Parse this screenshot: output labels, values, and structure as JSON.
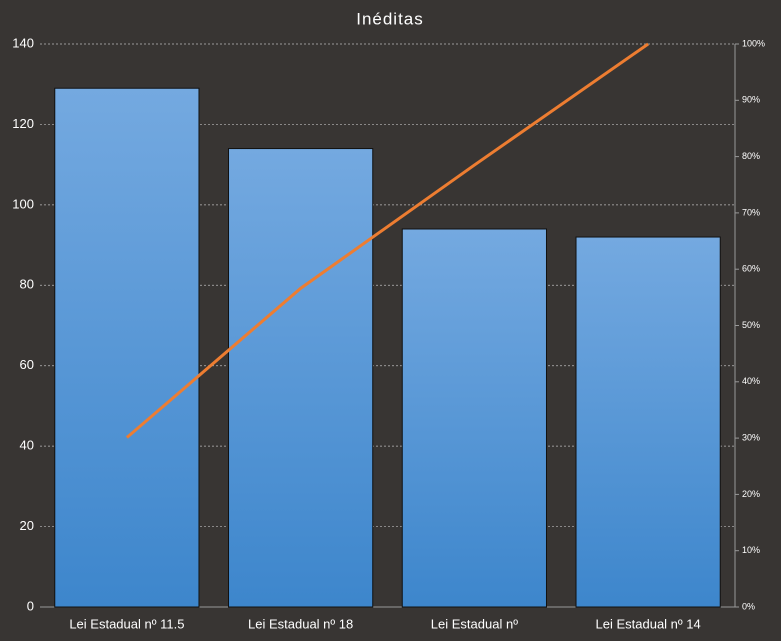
{
  "chart_data": {
    "type": "bar",
    "title": "Inéditas",
    "categories": [
      "Lei Estadual nº 11.5",
      "Lei Estadual nº 18",
      "Lei Estadual nº",
      "Lei Estadual nº 14"
    ],
    "series": [
      {
        "type": "bar",
        "color": "#5b9bd5",
        "values": [
          129,
          114,
          94,
          92
        ]
      },
      {
        "type": "line",
        "axis": "y2",
        "color": "#ed7d31",
        "values": [
          30.1,
          56.6,
          78.5,
          100
        ]
      }
    ],
    "ylim": [
      0,
      140
    ],
    "yticks": [
      0,
      20,
      40,
      60,
      80,
      100,
      120,
      140
    ],
    "y2lim": [
      0,
      100
    ],
    "y2ticks": [
      {
        "value": 0,
        "label": "0%"
      },
      {
        "value": 10,
        "label": "10%"
      },
      {
        "value": 20,
        "label": "20%"
      },
      {
        "value": 30,
        "label": "30%"
      },
      {
        "value": 40,
        "label": "40%"
      },
      {
        "value": 50,
        "label": "50%"
      },
      {
        "value": 60,
        "label": "60%"
      },
      {
        "value": 70,
        "label": "70%"
      },
      {
        "value": 80,
        "label": "80%"
      },
      {
        "value": 90,
        "label": "90%"
      },
      {
        "value": 100,
        "label": "100%"
      }
    ],
    "grid": true
  }
}
